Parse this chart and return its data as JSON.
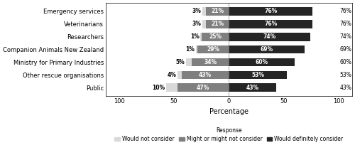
{
  "categories": [
    "Public",
    "Other rescue organisations",
    "Ministry for Primary Industries",
    "Companion Animals New Zealand",
    "Researchers",
    "Veterinarians",
    "Emergency services"
  ],
  "would_not_consider": [
    10,
    4,
    5,
    1,
    1,
    3,
    3
  ],
  "might_or_might_not": [
    47,
    43,
    34,
    29,
    25,
    21,
    21
  ],
  "would_definitely": [
    43,
    53,
    60,
    69,
    74,
    76,
    76
  ],
  "color_would_not": "#d9d9d9",
  "color_might": "#7f7f7f",
  "color_definitely": "#252525",
  "xlabel": "Percentage",
  "legend_label_1": "Would not consider",
  "legend_label_2": "Might or might not consider",
  "legend_label_3": "Would definitely consider",
  "legend_prefix": "Response",
  "xlim": 100,
  "xticks": [
    -100,
    -50,
    0,
    50,
    100
  ],
  "xticklabels": [
    "100",
    "50",
    "0",
    "50",
    "100"
  ]
}
